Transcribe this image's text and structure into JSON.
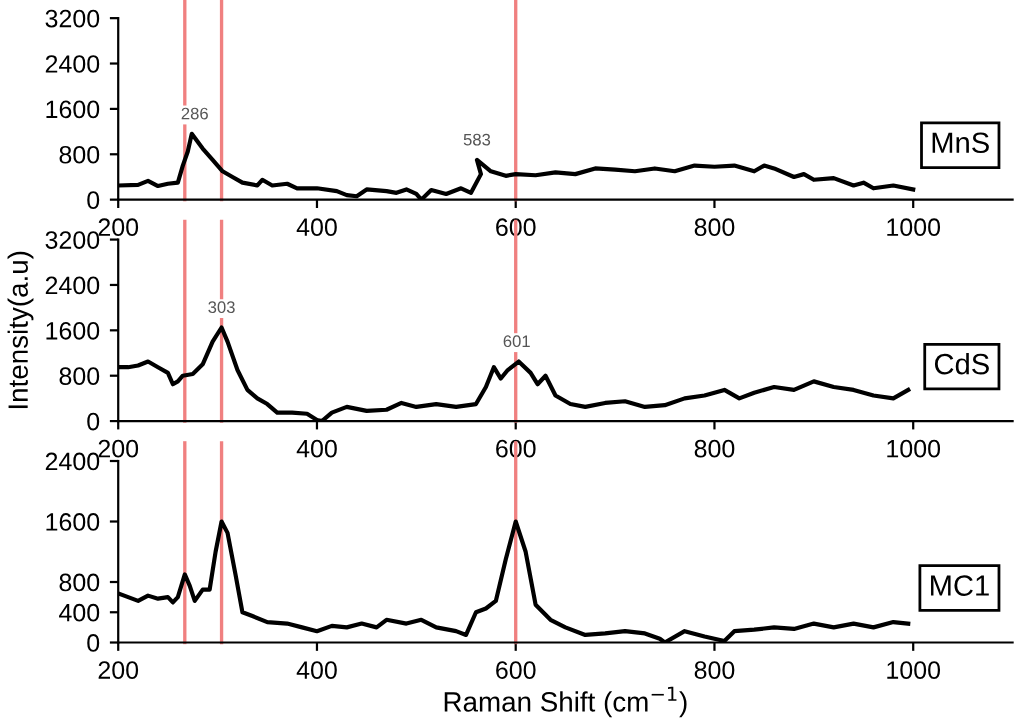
{
  "chart_data": [
    {
      "type": "line",
      "xlim": [
        200,
        1100
      ],
      "xticks": [
        200,
        400,
        600,
        800,
        1000
      ],
      "ylim": [
        0,
        3200
      ],
      "yticks": [
        0,
        800,
        1600,
        2400,
        3200
      ],
      "grid": false,
      "x": [
        200,
        220,
        230,
        240,
        250,
        260,
        265,
        270,
        274,
        285,
        295,
        305,
        315,
        325,
        340,
        345,
        355,
        370,
        380,
        400,
        420,
        430,
        440,
        450,
        470,
        480,
        490,
        500,
        505,
        515,
        530,
        545,
        555,
        565,
        561,
        575,
        590,
        600,
        620,
        640,
        660,
        680,
        700,
        720,
        740,
        760,
        780,
        800,
        820,
        840,
        850,
        860,
        880,
        890,
        900,
        920,
        940,
        950,
        960,
        980,
        1000
      ],
      "series": [
        {
          "name": "MnS",
          "color": "#000000",
          "values": [
            250,
            260,
            330,
            240,
            280,
            300,
            600,
            850,
            1160,
            900,
            700,
            500,
            400,
            300,
            250,
            350,
            250,
            280,
            200,
            200,
            150,
            80,
            60,
            180,
            150,
            120,
            180,
            100,
            0,
            170,
            100,
            200,
            120,
            450,
            700,
            500,
            420,
            450,
            430,
            480,
            450,
            550,
            530,
            500,
            550,
            500,
            600,
            580,
            600,
            500,
            600,
            550,
            400,
            450,
            350,
            380,
            250,
            300,
            200,
            250,
            180
          ]
        }
      ],
      "ref_lines": [
        {
          "axis": "x",
          "value": 267,
          "color": "#f08080"
        },
        {
          "axis": "x",
          "value": 304,
          "color": "#f08080"
        },
        {
          "axis": "x",
          "value": 600,
          "color": "#f08080"
        }
      ],
      "annotations": [
        {
          "text": "286",
          "x": 277,
          "y": 1160
        },
        {
          "text": "583",
          "x": 561,
          "y": 700
        }
      ]
    },
    {
      "type": "line",
      "xlim": [
        200,
        1100
      ],
      "xticks": [
        200,
        400,
        600,
        800,
        1000
      ],
      "ylim": [
        0,
        3200
      ],
      "yticks": [
        0,
        800,
        1600,
        2400,
        3200
      ],
      "grid": false,
      "ylabel": "Intensity(a.u)",
      "x": [
        200,
        210,
        220,
        230,
        240,
        250,
        255,
        260,
        265,
        275,
        285,
        295,
        304,
        310,
        320,
        330,
        340,
        350,
        360,
        375,
        390,
        400,
        405,
        415,
        430,
        450,
        470,
        485,
        500,
        520,
        540,
        560,
        570,
        578,
        585,
        592,
        603,
        615,
        622,
        630,
        640,
        655,
        670,
        690,
        710,
        730,
        750,
        770,
        790,
        810,
        825,
        840,
        860,
        880,
        900,
        920,
        940,
        960,
        980,
        995
      ],
      "series": [
        {
          "name": "CdS",
          "color": "#000000",
          "values": [
            950,
            950,
            980,
            1050,
            950,
            850,
            650,
            700,
            800,
            830,
            1000,
            1400,
            1650,
            1400,
            900,
            550,
            400,
            300,
            150,
            150,
            130,
            20,
            0,
            150,
            250,
            180,
            200,
            320,
            250,
            300,
            250,
            300,
            600,
            950,
            750,
            900,
            1050,
            850,
            650,
            800,
            450,
            300,
            250,
            320,
            350,
            250,
            280,
            400,
            450,
            550,
            400,
            500,
            600,
            550,
            700,
            600,
            550,
            450,
            400,
            550
          ]
        }
      ],
      "ref_lines": [
        {
          "axis": "x",
          "value": 267,
          "color": "#f08080"
        },
        {
          "axis": "x",
          "value": 304,
          "color": "#f08080"
        },
        {
          "axis": "x",
          "value": 600,
          "color": "#f08080"
        }
      ],
      "annotations": [
        {
          "text": "303",
          "x": 304,
          "y": 1650
        },
        {
          "text": "601",
          "x": 601,
          "y": 1050
        }
      ]
    },
    {
      "type": "line",
      "xlim": [
        200,
        1100
      ],
      "xticks": [
        200,
        400,
        600,
        800,
        1000
      ],
      "ylim": [
        0,
        2400
      ],
      "yticks": [
        0,
        400,
        800,
        1600,
        2400
      ],
      "grid": false,
      "xlabel": "Raman Shift (cm$^{−1}$)",
      "x": [
        200,
        210,
        220,
        230,
        240,
        250,
        255,
        260,
        267,
        272,
        277,
        285,
        292,
        298,
        304,
        310,
        318,
        325,
        335,
        350,
        370,
        385,
        400,
        415,
        430,
        445,
        460,
        470,
        490,
        505,
        520,
        540,
        550,
        560,
        570,
        580,
        590,
        600,
        610,
        620,
        635,
        650,
        670,
        690,
        710,
        730,
        745,
        750,
        770,
        790,
        810,
        820,
        840,
        860,
        880,
        900,
        920,
        940,
        960,
        980,
        995
      ],
      "series": [
        {
          "name": "MC1",
          "color": "#000000",
          "values": [
            650,
            600,
            550,
            620,
            580,
            600,
            530,
            600,
            900,
            750,
            550,
            700,
            700,
            1200,
            1600,
            1450,
            900,
            400,
            350,
            270,
            250,
            200,
            150,
            220,
            200,
            250,
            200,
            300,
            250,
            300,
            200,
            150,
            100,
            400,
            450,
            550,
            1100,
            1600,
            1200,
            500,
            300,
            200,
            100,
            120,
            150,
            120,
            50,
            0,
            150,
            80,
            20,
            150,
            170,
            200,
            180,
            250,
            200,
            250,
            200,
            270,
            250
          ]
        }
      ],
      "ref_lines": [
        {
          "axis": "x",
          "value": 267,
          "color": "#f08080"
        },
        {
          "axis": "x",
          "value": 304,
          "color": "#f08080"
        },
        {
          "axis": "x",
          "value": 600,
          "color": "#f08080"
        }
      ]
    }
  ]
}
